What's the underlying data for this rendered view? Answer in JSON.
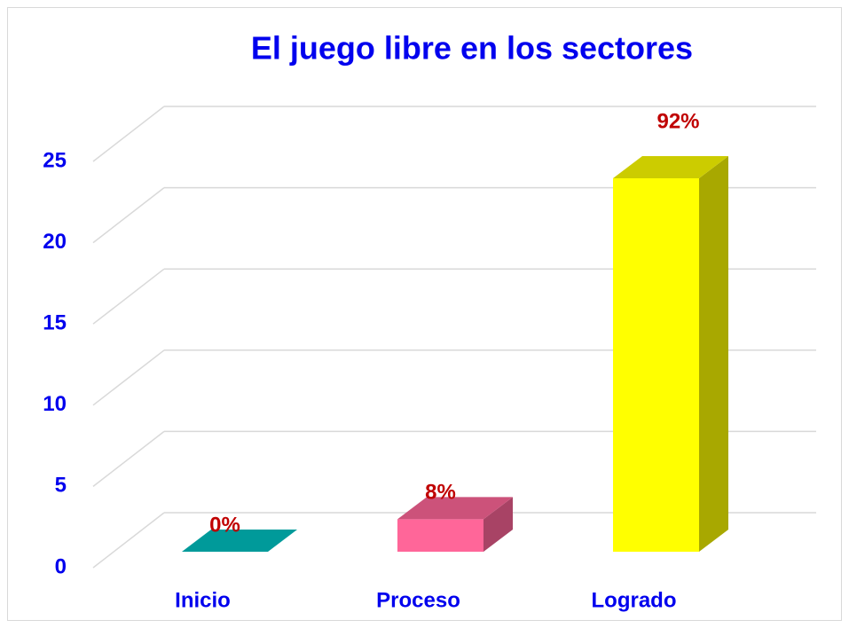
{
  "chart_data": {
    "type": "bar3d",
    "title": "El juego libre en los sectores",
    "categories": [
      "Inicio",
      "Proceso",
      "Logrado"
    ],
    "values": [
      0,
      2,
      23
    ],
    "value_labels": [
      "0%",
      "8%",
      "92%"
    ],
    "colors": [
      "#00c0c0",
      "#ff6699",
      "#ffff00"
    ],
    "ylim": [
      0,
      25
    ],
    "yticks": [
      0,
      5,
      10,
      15,
      20,
      25
    ],
    "grid": true
  }
}
